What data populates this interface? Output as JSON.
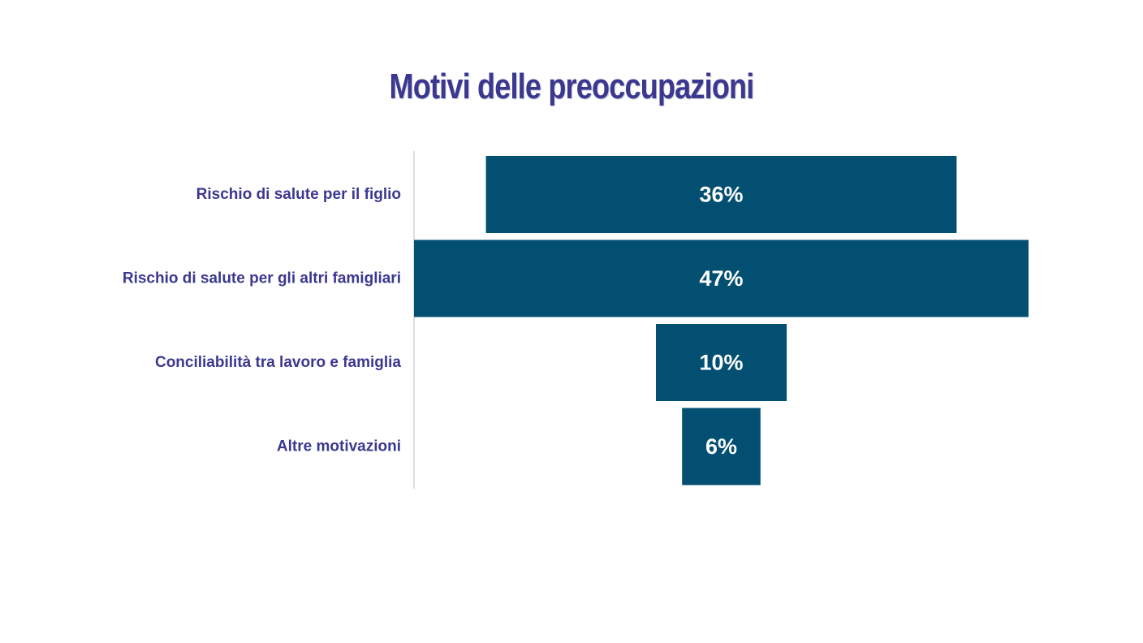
{
  "chart_data": {
    "type": "bar",
    "subtype": "funnel",
    "title": "Motivi delle preoccupazioni",
    "categories": [
      "Rischio di salute per il figlio",
      "Rischio di salute per gli altri famigliari",
      "Conciliabilità tra lavoro e famiglia",
      "Altre motivazioni"
    ],
    "values": [
      36,
      47,
      10,
      6
    ],
    "data_labels": [
      "36%",
      "47%",
      "10%",
      "6%"
    ],
    "unit": "%",
    "xlim": [
      0,
      47
    ],
    "grid": false,
    "legend": "none",
    "colors": {
      "bar": "#034f72",
      "title": "#3b3890",
      "category_label": "#3b3890",
      "bar_label": "#ffffff",
      "axis_line": "#d4d4dc"
    }
  }
}
